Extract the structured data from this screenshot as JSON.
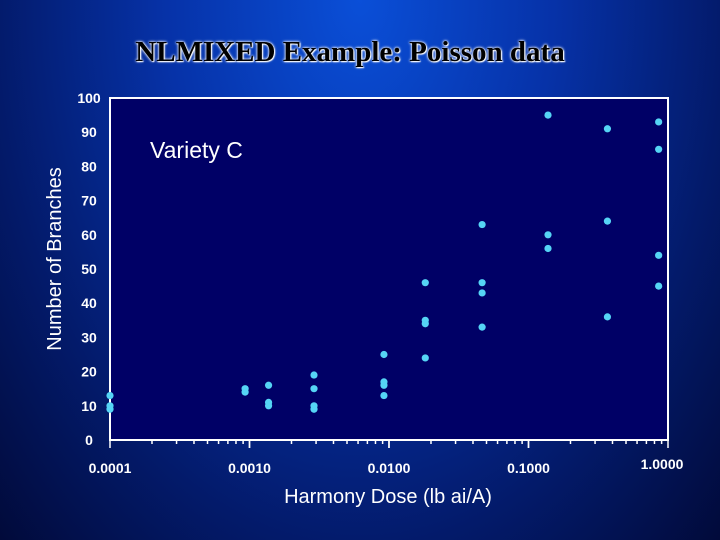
{
  "colors": {
    "marker": "#55d4f5",
    "axis": "#ffffff",
    "plot_background": "#000066"
  },
  "chart_data": {
    "type": "scatter",
    "title": "NLMIXED Example: Poisson data",
    "xlabel": "Harmony Dose (lb ai/A)",
    "ylabel": "Number of Branches",
    "x_scale": "log",
    "xlim": [
      0.0001,
      1.0
    ],
    "ylim": [
      0,
      100
    ],
    "x_tick_labels": [
      "0.0001",
      "0.0010",
      "0.0100",
      "0.1000",
      "1.0000"
    ],
    "y_tick_labels": [
      "100",
      "90",
      "80",
      "70",
      "60",
      "50",
      "40",
      "30",
      "20",
      "10",
      "0"
    ],
    "annotation": "Variety C",
    "legend": "none",
    "grid": false,
    "series": [
      {
        "points": [
          [
            0.0001,
            13
          ],
          [
            0.0001,
            10
          ],
          [
            0.0001,
            9
          ],
          [
            0.00093,
            15
          ],
          [
            0.00093,
            14
          ],
          [
            0.00137,
            16
          ],
          [
            0.00137,
            11
          ],
          [
            0.00137,
            10
          ],
          [
            0.0029,
            19
          ],
          [
            0.0029,
            15
          ],
          [
            0.0029,
            10
          ],
          [
            0.0029,
            9
          ],
          [
            0.0092,
            25
          ],
          [
            0.0092,
            17
          ],
          [
            0.0092,
            16
          ],
          [
            0.0092,
            13
          ],
          [
            0.0182,
            46
          ],
          [
            0.0182,
            35
          ],
          [
            0.0182,
            34
          ],
          [
            0.0182,
            24
          ],
          [
            0.0465,
            63
          ],
          [
            0.0465,
            46
          ],
          [
            0.0465,
            43
          ],
          [
            0.0465,
            33
          ],
          [
            0.138,
            95
          ],
          [
            0.138,
            60
          ],
          [
            0.138,
            56
          ],
          [
            0.368,
            91
          ],
          [
            0.368,
            64
          ],
          [
            0.368,
            36
          ],
          [
            0.857,
            93
          ],
          [
            0.857,
            85
          ],
          [
            0.857,
            54
          ],
          [
            0.857,
            45
          ]
        ]
      }
    ]
  }
}
